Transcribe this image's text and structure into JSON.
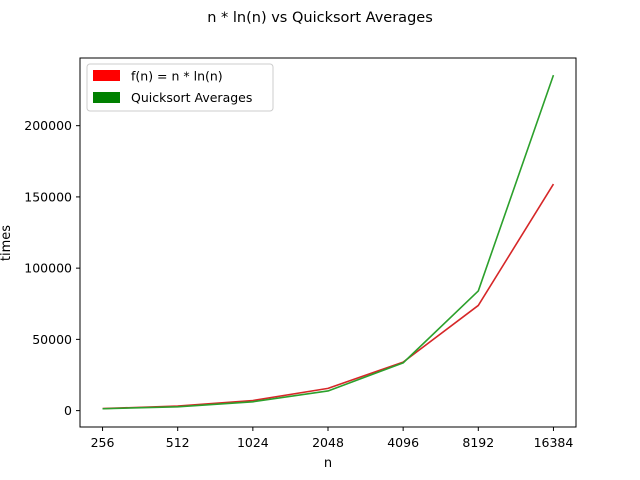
{
  "chart_data": {
    "type": "line",
    "title": "n * ln(n) vs Quicksort Averages",
    "xlabel": "n",
    "ylabel": "times",
    "categories": [
      "256",
      "512",
      "1024",
      "2048",
      "4096",
      "8192",
      "16384"
    ],
    "ylim": [
      -11500,
      247500
    ],
    "yticks": [
      0,
      50000,
      100000,
      150000,
      200000
    ],
    "ytick_labels": [
      "0",
      "50000",
      "100000",
      "150000",
      "200000"
    ],
    "grid": false,
    "legend_position": "upper-left",
    "series": [
      {
        "name": "f(n) = n * ln(n)",
        "color": "#d62728",
        "legend_color": "#ff0000",
        "values": [
          1420,
          3194,
          7098,
          15615,
          34070,
          73817,
          158991
        ]
      },
      {
        "name": "Quicksort Averages",
        "color": "#2ca02c",
        "legend_color": "#008000",
        "values": [
          1300,
          2700,
          6200,
          13800,
          33500,
          84000,
          235500
        ]
      }
    ]
  }
}
